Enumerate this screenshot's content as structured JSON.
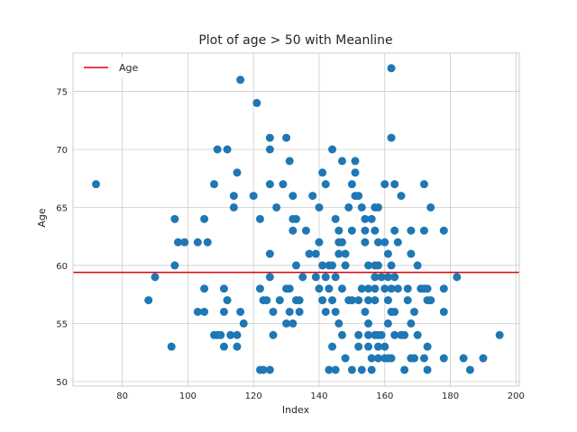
{
  "chart_data": {
    "type": "scatter",
    "title": "Plot of age > 50 with Meanline",
    "xlabel": "Index",
    "ylabel": "Age",
    "xlim": [
      65,
      201
    ],
    "ylim": [
      49.6,
      78.3
    ],
    "xticks": [
      80,
      100,
      120,
      140,
      160,
      180,
      200
    ],
    "yticks": [
      50,
      55,
      60,
      65,
      70,
      75
    ],
    "grid": true,
    "legend": {
      "position": "top-left",
      "entries": [
        {
          "label": "Age",
          "color": "#dd0000",
          "marker": "line"
        }
      ]
    },
    "mean_line": {
      "y": 59.4,
      "label": "Age",
      "color": "#dd0000"
    },
    "series": [
      {
        "name": "age",
        "color": "#1f77b4",
        "points": [
          [
            72,
            67
          ],
          [
            88,
            57
          ],
          [
            90,
            59
          ],
          [
            95,
            53
          ],
          [
            96,
            60
          ],
          [
            96,
            64
          ],
          [
            97,
            62
          ],
          [
            99,
            62
          ],
          [
            103,
            62
          ],
          [
            103,
            56
          ],
          [
            105,
            56
          ],
          [
            105,
            58
          ],
          [
            105,
            64
          ],
          [
            106,
            62
          ],
          [
            108,
            67
          ],
          [
            108,
            54
          ],
          [
            109,
            70
          ],
          [
            109,
            54
          ],
          [
            110,
            54
          ],
          [
            111,
            53
          ],
          [
            111,
            56
          ],
          [
            111,
            58
          ],
          [
            112,
            70
          ],
          [
            112,
            57
          ],
          [
            113,
            54
          ],
          [
            114,
            66
          ],
          [
            114,
            65
          ],
          [
            115,
            68
          ],
          [
            115,
            53
          ],
          [
            115,
            54
          ],
          [
            116,
            76
          ],
          [
            116,
            56
          ],
          [
            117,
            55
          ],
          [
            120,
            66
          ],
          [
            121,
            74
          ],
          [
            122,
            64
          ],
          [
            122,
            58
          ],
          [
            122,
            51
          ],
          [
            123,
            51
          ],
          [
            123,
            57
          ],
          [
            124,
            57
          ],
          [
            125,
            51
          ],
          [
            125,
            71
          ],
          [
            125,
            70
          ],
          [
            125,
            67
          ],
          [
            125,
            61
          ],
          [
            125,
            59
          ],
          [
            126,
            56
          ],
          [
            126,
            54
          ],
          [
            127,
            65
          ],
          [
            128,
            57
          ],
          [
            129,
            67
          ],
          [
            130,
            71
          ],
          [
            130,
            58
          ],
          [
            130,
            55
          ],
          [
            131,
            58
          ],
          [
            131,
            56
          ],
          [
            131,
            69
          ],
          [
            132,
            66
          ],
          [
            132,
            64
          ],
          [
            132,
            63
          ],
          [
            132,
            55
          ],
          [
            133,
            64
          ],
          [
            133,
            60
          ],
          [
            133,
            57
          ],
          [
            134,
            56
          ],
          [
            134,
            57
          ],
          [
            135,
            59
          ],
          [
            136,
            63
          ],
          [
            137,
            61
          ],
          [
            138,
            66
          ],
          [
            139,
            61
          ],
          [
            139,
            59
          ],
          [
            140,
            58
          ],
          [
            140,
            65
          ],
          [
            140,
            62
          ],
          [
            141,
            68
          ],
          [
            141,
            60
          ],
          [
            141,
            57
          ],
          [
            142,
            67
          ],
          [
            142,
            59
          ],
          [
            142,
            56
          ],
          [
            143,
            60
          ],
          [
            143,
            58
          ],
          [
            143,
            51
          ],
          [
            144,
            70
          ],
          [
            144,
            53
          ],
          [
            144,
            60
          ],
          [
            144,
            57
          ],
          [
            145,
            64
          ],
          [
            145,
            56
          ],
          [
            145,
            59
          ],
          [
            145,
            51
          ],
          [
            146,
            63
          ],
          [
            146,
            62
          ],
          [
            146,
            55
          ],
          [
            146,
            61
          ],
          [
            147,
            69
          ],
          [
            147,
            62
          ],
          [
            147,
            58
          ],
          [
            147,
            54
          ],
          [
            148,
            61
          ],
          [
            148,
            52
          ],
          [
            148,
            60
          ],
          [
            149,
            65
          ],
          [
            149,
            57
          ],
          [
            150,
            51
          ],
          [
            150,
            63
          ],
          [
            150,
            67
          ],
          [
            150,
            57
          ],
          [
            151,
            69
          ],
          [
            151,
            68
          ],
          [
            151,
            66
          ],
          [
            152,
            57
          ],
          [
            152,
            66
          ],
          [
            152,
            54
          ],
          [
            152,
            53
          ],
          [
            153,
            65
          ],
          [
            153,
            58
          ],
          [
            153,
            51
          ],
          [
            154,
            64
          ],
          [
            154,
            62
          ],
          [
            154,
            63
          ],
          [
            154,
            56
          ],
          [
            155,
            57
          ],
          [
            155,
            58
          ],
          [
            155,
            60
          ],
          [
            155,
            55
          ],
          [
            155,
            54
          ],
          [
            155,
            53
          ],
          [
            156,
            64
          ],
          [
            156,
            52
          ],
          [
            156,
            51
          ],
          [
            157,
            60
          ],
          [
            157,
            58
          ],
          [
            157,
            57
          ],
          [
            157,
            54
          ],
          [
            157,
            65
          ],
          [
            157,
            63
          ],
          [
            157,
            59
          ],
          [
            158,
            62
          ],
          [
            158,
            65
          ],
          [
            158,
            60
          ],
          [
            158,
            54
          ],
          [
            158,
            53
          ],
          [
            158,
            52
          ],
          [
            159,
            59
          ],
          [
            159,
            54
          ],
          [
            160,
            67
          ],
          [
            160,
            62
          ],
          [
            160,
            58
          ],
          [
            160,
            53
          ],
          [
            160,
            52
          ],
          [
            161,
            61
          ],
          [
            161,
            59
          ],
          [
            161,
            57
          ],
          [
            161,
            55
          ],
          [
            161,
            52
          ],
          [
            162,
            71
          ],
          [
            162,
            77
          ],
          [
            162,
            60
          ],
          [
            162,
            58
          ],
          [
            162,
            56
          ],
          [
            162,
            52
          ],
          [
            163,
            67
          ],
          [
            163,
            63
          ],
          [
            163,
            59
          ],
          [
            163,
            56
          ],
          [
            163,
            54
          ],
          [
            164,
            62
          ],
          [
            164,
            58
          ],
          [
            165,
            66
          ],
          [
            165,
            54
          ],
          [
            166,
            54
          ],
          [
            166,
            51
          ],
          [
            167,
            58
          ],
          [
            167,
            57
          ],
          [
            168,
            52
          ],
          [
            168,
            63
          ],
          [
            168,
            61
          ],
          [
            168,
            55
          ],
          [
            169,
            56
          ],
          [
            169,
            52
          ],
          [
            170,
            60
          ],
          [
            170,
            54
          ],
          [
            171,
            58
          ],
          [
            172,
            67
          ],
          [
            172,
            63
          ],
          [
            172,
            58
          ],
          [
            172,
            52
          ],
          [
            173,
            58
          ],
          [
            173,
            57
          ],
          [
            173,
            53
          ],
          [
            173,
            51
          ],
          [
            174,
            65
          ],
          [
            174,
            57
          ],
          [
            178,
            63
          ],
          [
            178,
            58
          ],
          [
            178,
            56
          ],
          [
            178,
            52
          ],
          [
            182,
            59
          ],
          [
            184,
            52
          ],
          [
            186,
            51
          ],
          [
            190,
            52
          ],
          [
            195,
            54
          ]
        ]
      }
    ]
  }
}
